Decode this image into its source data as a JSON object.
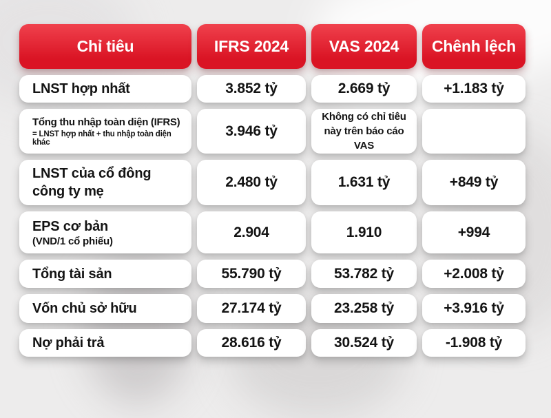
{
  "table": {
    "headers": [
      "Chỉ tiêu",
      "IFRS 2024",
      "VAS 2024",
      "Chênh lệch"
    ],
    "rows": [
      {
        "label": "LNST hợp nhất",
        "ifrs": "3.852 tỷ",
        "vas": "2.669 tỷ",
        "diff": "+1.183 tỷ"
      },
      {
        "label": "Tổng thu nhập toàn diện (IFRS)",
        "sublabel": "= LNST hợp nhất + thu nhập toàn diện khác",
        "ifrs": "3.946 tỷ",
        "vas": "Không có chỉ tiêu này trên báo cáo VAS",
        "diff": ""
      },
      {
        "label": "LNST của cổ đông công ty mẹ",
        "ifrs": "2.480 tỷ",
        "vas": "1.631 tỷ",
        "diff": "+849 tỷ"
      },
      {
        "label": "EPS cơ bản",
        "sublabel": "(VND/1 cổ phiếu)",
        "ifrs": "2.904",
        "vas": "1.910",
        "diff": "+994"
      },
      {
        "label": "Tổng tài sản",
        "ifrs": "55.790 tỷ",
        "vas": "53.782 tỷ",
        "diff": "+2.008 tỷ"
      },
      {
        "label": "Vốn chủ sở hữu",
        "ifrs": "27.174 tỷ",
        "vas": "23.258 tỷ",
        "diff": "+3.916 tỷ"
      },
      {
        "label": "Nợ phải trả",
        "ifrs": "28.616 tỷ",
        "vas": "30.524 tỷ",
        "diff": "-1.908 tỷ"
      }
    ]
  },
  "chart_data": {
    "type": "table",
    "title": "So sánh IFRS 2024 và VAS 2024",
    "columns": [
      "Chỉ tiêu",
      "IFRS 2024",
      "VAS 2024",
      "Chênh lệch"
    ],
    "rows": [
      [
        "LNST hợp nhất",
        "3.852 tỷ",
        "2.669 tỷ",
        "+1.183 tỷ"
      ],
      [
        "Tổng thu nhập toàn diện (IFRS) = LNST hợp nhất + thu nhập toàn diện khác",
        "3.946 tỷ",
        "Không có chỉ tiêu này trên báo cáo VAS",
        ""
      ],
      [
        "LNST của cổ đông công ty mẹ",
        "2.480 tỷ",
        "1.631 tỷ",
        "+849 tỷ"
      ],
      [
        "EPS cơ bản (VND/1 cổ phiếu)",
        "2.904",
        "1.910",
        "+994"
      ],
      [
        "Tổng tài sản",
        "55.790 tỷ",
        "53.782 tỷ",
        "+2.008 tỷ"
      ],
      [
        "Vốn chủ sở hữu",
        "27.174 tỷ",
        "23.258 tỷ",
        "+3.916 tỷ"
      ],
      [
        "Nợ phải trả",
        "28.616 tỷ",
        "30.524 tỷ",
        "-1.908 tỷ"
      ]
    ],
    "units": "tỷ VND (EPS: VND/cổ phiếu)"
  },
  "colors": {
    "header_gradient_top": "#f0414d",
    "header_gradient_bottom": "#da1424",
    "cell_background": "#ffffff",
    "text_dark": "#141414",
    "header_text": "#ffffff",
    "page_background": "#edecec"
  }
}
